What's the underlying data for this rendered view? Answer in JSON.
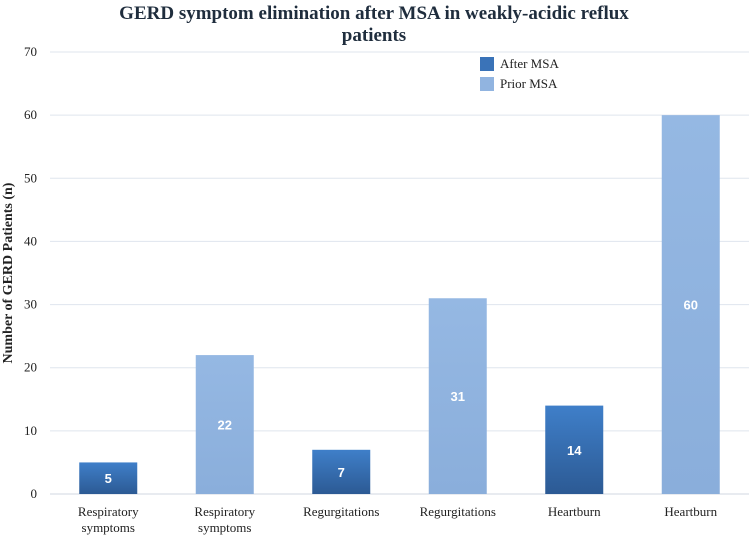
{
  "chart_data": {
    "type": "bar",
    "title_lines": [
      "GERD symptom elimination after MSA in weakly-acidic reflux",
      "patients"
    ],
    "ylabel": "Number of GERD Patients (n)",
    "xlabel": "",
    "ylim": [
      0,
      70
    ],
    "yticks": [
      0,
      10,
      20,
      30,
      40,
      50,
      60,
      70
    ],
    "grid": true,
    "legend_position": "top-right",
    "series_colors": {
      "After MSA": "#3a73b8",
      "Prior MSA": "#91b4e0"
    },
    "legend": [
      {
        "name": "After MSA",
        "color": "#3a73b8"
      },
      {
        "name": "Prior MSA",
        "color": "#91b4e0"
      }
    ],
    "bars": [
      {
        "category": [
          "Respiratory",
          "symptoms"
        ],
        "series": "After MSA",
        "value": 5,
        "label": "5"
      },
      {
        "category": [
          "Respiratory",
          "symptoms"
        ],
        "series": "Prior MSA",
        "value": 22,
        "label": "22"
      },
      {
        "category": [
          "Regurgitations"
        ],
        "series": "After MSA",
        "value": 7,
        "label": "7"
      },
      {
        "category": [
          "Regurgitations"
        ],
        "series": "Prior MSA",
        "value": 31,
        "label": "31"
      },
      {
        "category": [
          "Heartburn"
        ],
        "series": "After MSA",
        "value": 14,
        "label": "14"
      },
      {
        "category": [
          "Heartburn"
        ],
        "series": "Prior MSA",
        "value": 60,
        "label": "60"
      }
    ]
  }
}
